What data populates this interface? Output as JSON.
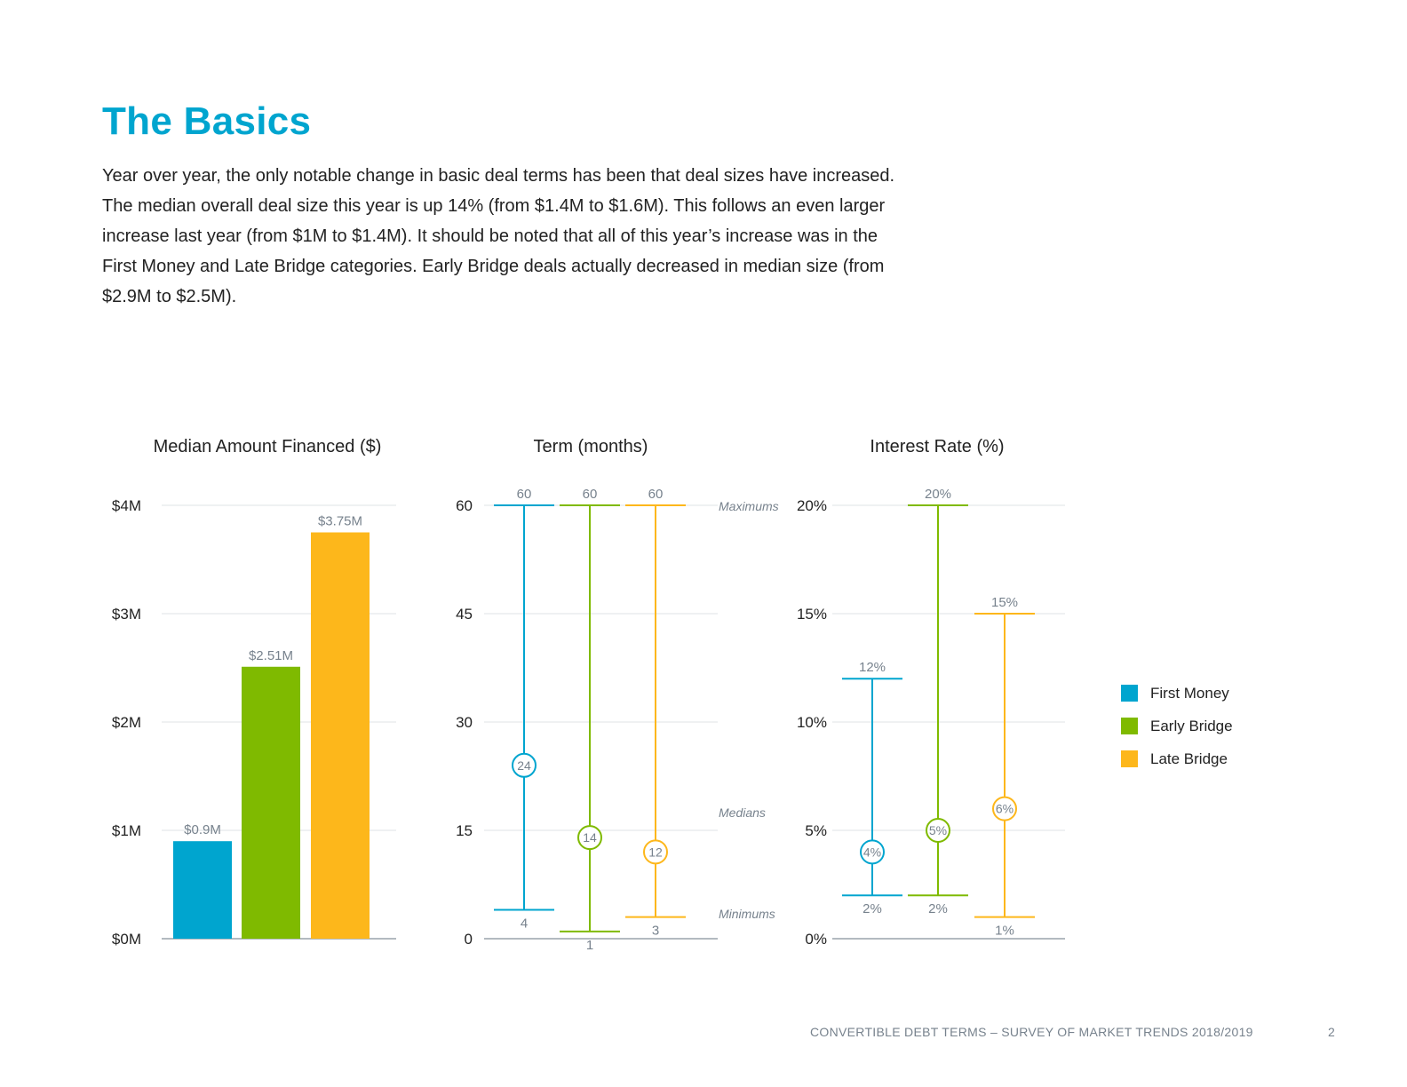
{
  "page": {
    "heading": "The Basics",
    "intro": "Year over year, the only notable change in basic deal terms has been that deal sizes have increased. The median overall deal size this year is up 14% (from $1.4M to $1.6M). This follows an even larger increase last year (from $1M to $1.4M). It should be noted that all of this year’s increase was in the First Money and Late Bridge categories. Early Bridge deals actually decreased in median size (from $2.9M to $2.5M).",
    "footer": "CONVERTIBLE DEBT TERMS – SURVEY OF MARKET TRENDS  2018/2019",
    "page_number": "2"
  },
  "legend": [
    {
      "label": "First Money",
      "color": "#00a5cf"
    },
    {
      "label": "Early Bridge",
      "color": "#7fba00"
    },
    {
      "label": "Late Bridge",
      "color": "#fdb71b"
    }
  ],
  "chart_data": [
    {
      "type": "bar",
      "title": "Median Amount Financed ($)",
      "categories": [
        "First Money",
        "Early Bridge",
        "Late Bridge"
      ],
      "values": [
        0.9,
        2.51,
        3.75
      ],
      "value_labels": [
        "$0.9M",
        "$2.51M",
        "$3.75M"
      ],
      "colors": [
        "#00a5cf",
        "#7fba00",
        "#fdb71b"
      ],
      "ylim": [
        0,
        4
      ],
      "yticks": [
        0,
        1,
        2,
        3,
        4
      ],
      "ytick_labels": [
        "$0M",
        "$1M",
        "$2M",
        "$3M",
        "$4M"
      ],
      "grid": true
    },
    {
      "type": "range",
      "title": "Term (months)",
      "categories": [
        "First Money",
        "Early Bridge",
        "Late Bridge"
      ],
      "max": [
        60,
        60,
        60
      ],
      "median": [
        24,
        14,
        12
      ],
      "min": [
        4,
        1,
        3
      ],
      "max_labels": [
        "60",
        "60",
        "60"
      ],
      "median_labels": [
        "24",
        "14",
        "12"
      ],
      "min_labels": [
        "4",
        "1",
        "3"
      ],
      "colors": [
        "#00a5cf",
        "#7fba00",
        "#fdb71b"
      ],
      "ylim": [
        0,
        60
      ],
      "yticks": [
        0,
        15,
        30,
        45,
        60
      ],
      "ytick_labels": [
        "0",
        "15",
        "30",
        "45",
        "60"
      ],
      "annotations": [
        "Maximums",
        "Medians",
        "Minimums"
      ],
      "grid": true
    },
    {
      "type": "range",
      "title": "Interest Rate (%)",
      "categories": [
        "First Money",
        "Early Bridge",
        "Late Bridge"
      ],
      "max": [
        12,
        20,
        15
      ],
      "median": [
        4,
        5,
        6
      ],
      "min": [
        2,
        2,
        1
      ],
      "max_labels": [
        "12%",
        "20%",
        "15%"
      ],
      "median_labels": [
        "4%",
        "5%",
        "6%"
      ],
      "min_labels": [
        "2%",
        "2%",
        "1%"
      ],
      "colors": [
        "#00a5cf",
        "#7fba00",
        "#fdb71b"
      ],
      "ylim": [
        0,
        20
      ],
      "yticks": [
        0,
        5,
        10,
        15,
        20
      ],
      "ytick_labels": [
        "0%",
        "5%",
        "10%",
        "15%",
        "20%"
      ],
      "grid": true
    }
  ]
}
